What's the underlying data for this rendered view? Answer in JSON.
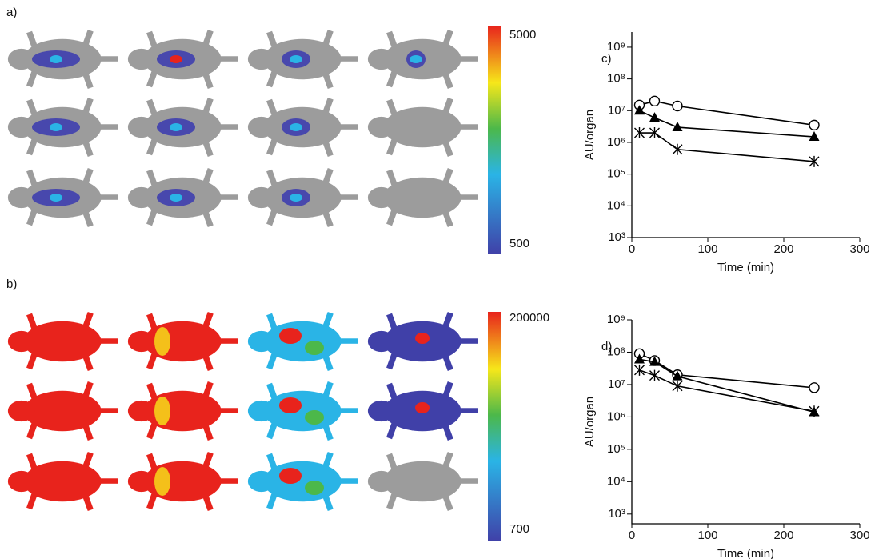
{
  "panels": [
    {
      "label": "a)",
      "colorbar_max": 5000,
      "colorbar_min": 500
    },
    {
      "label": "b)",
      "colorbar_max": 200000,
      "colorbar_min": 700
    }
  ],
  "chart_data": [
    {
      "type": "line",
      "title": "c)",
      "xlabel": "Time (min)",
      "ylabel": "AU/organ",
      "log_y": true,
      "x": [
        10,
        30,
        60,
        240
      ],
      "xlim": [
        0,
        300
      ],
      "xticks": [
        0,
        100,
        200,
        300
      ],
      "ylim": [
        1000,
        3000000000
      ],
      "yticks": [
        {
          "value": 1000,
          "label": "10³"
        },
        {
          "value": 10000,
          "label": "10⁴"
        },
        {
          "value": 100000,
          "label": "10⁵"
        },
        {
          "value": 1000000,
          "label": "10⁶"
        },
        {
          "value": 10000000,
          "label": "10⁷"
        },
        {
          "value": 100000000,
          "label": "10⁸"
        },
        {
          "value": 1000000000,
          "label": "10⁹"
        }
      ],
      "series": [
        {
          "color": "#000000",
          "marker": "circle",
          "values": [
            15000000,
            20000000,
            14000000,
            3500000
          ]
        },
        {
          "color": "#000000",
          "marker": "triangle",
          "values": [
            10000000,
            6000000,
            3000000,
            1500000
          ]
        },
        {
          "color": "#000000",
          "marker": "cross",
          "values": [
            2000000,
            2000000,
            600000,
            250000
          ]
        }
      ]
    },
    {
      "type": "line",
      "title": "d)",
      "xlabel": "Time (min)",
      "ylabel": "AU/organ",
      "log_y": true,
      "x": [
        10,
        30,
        60,
        240
      ],
      "xlim": [
        0,
        300
      ],
      "xticks": [
        0,
        100,
        200,
        300
      ],
      "ylim": [
        500,
        1000000000
      ],
      "yticks": [
        {
          "value": 1000,
          "label": "10³"
        },
        {
          "value": 10000,
          "label": "10⁴"
        },
        {
          "value": 100000,
          "label": "10⁵"
        },
        {
          "value": 1000000,
          "label": "10⁶"
        },
        {
          "value": 10000000,
          "label": "10⁷"
        },
        {
          "value": 100000000,
          "label": "10⁸"
        },
        {
          "value": 1000000000,
          "label": "10⁹"
        }
      ],
      "series": [
        {
          "color": "#000000",
          "marker": "circle",
          "values": [
            90000000,
            55000000,
            20000000,
            8000000
          ]
        },
        {
          "color": "#000000",
          "marker": "triangle",
          "values": [
            60000000,
            50000000,
            18000000,
            1400000
          ]
        },
        {
          "color": "#000000",
          "marker": "cross",
          "values": [
            28000000,
            19000000,
            9000000,
            1500000
          ]
        }
      ]
    }
  ]
}
